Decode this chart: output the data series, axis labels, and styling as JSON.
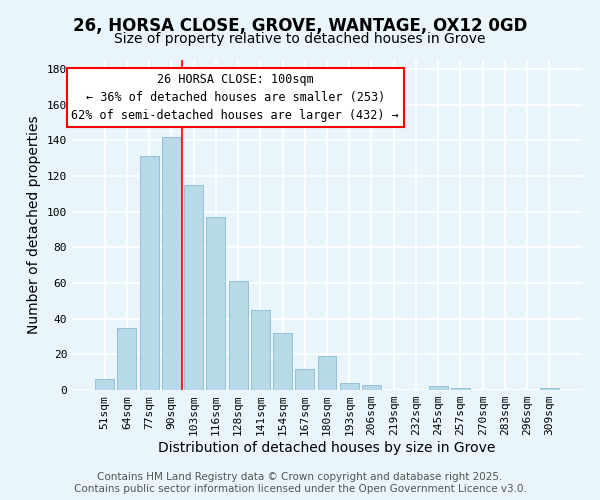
{
  "title": "26, HORSA CLOSE, GROVE, WANTAGE, OX12 0GD",
  "subtitle": "Size of property relative to detached houses in Grove",
  "xlabel": "Distribution of detached houses by size in Grove",
  "ylabel": "Number of detached properties",
  "bar_labels": [
    "51sqm",
    "64sqm",
    "77sqm",
    "90sqm",
    "103sqm",
    "116sqm",
    "128sqm",
    "141sqm",
    "154sqm",
    "167sqm",
    "180sqm",
    "193sqm",
    "206sqm",
    "219sqm",
    "232sqm",
    "245sqm",
    "257sqm",
    "270sqm",
    "283sqm",
    "296sqm",
    "309sqm"
  ],
  "bar_values": [
    6,
    35,
    131,
    142,
    115,
    97,
    61,
    45,
    32,
    12,
    19,
    4,
    3,
    0,
    0,
    2,
    1,
    0,
    0,
    0,
    1
  ],
  "bar_color": "#b8d9e8",
  "bar_edge_color": "#7ab4cc",
  "vline_x_index": 4,
  "vline_color": "red",
  "ylim": [
    0,
    185
  ],
  "yticks": [
    0,
    20,
    40,
    60,
    80,
    100,
    120,
    140,
    160,
    180
  ],
  "annotation_title": "26 HORSA CLOSE: 100sqm",
  "annotation_line1": "← 36% of detached houses are smaller (253)",
  "annotation_line2": "62% of semi-detached houses are larger (432) →",
  "annotation_box_edge": "red",
  "footer_line1": "Contains HM Land Registry data © Crown copyright and database right 2025.",
  "footer_line2": "Contains public sector information licensed under the Open Government Licence v3.0.",
  "background_color": "#eaf4fb",
  "grid_color": "white",
  "title_fontsize": 12,
  "subtitle_fontsize": 10,
  "axis_label_fontsize": 10,
  "tick_fontsize": 8,
  "annotation_fontsize": 8.5,
  "footer_fontsize": 7.5
}
